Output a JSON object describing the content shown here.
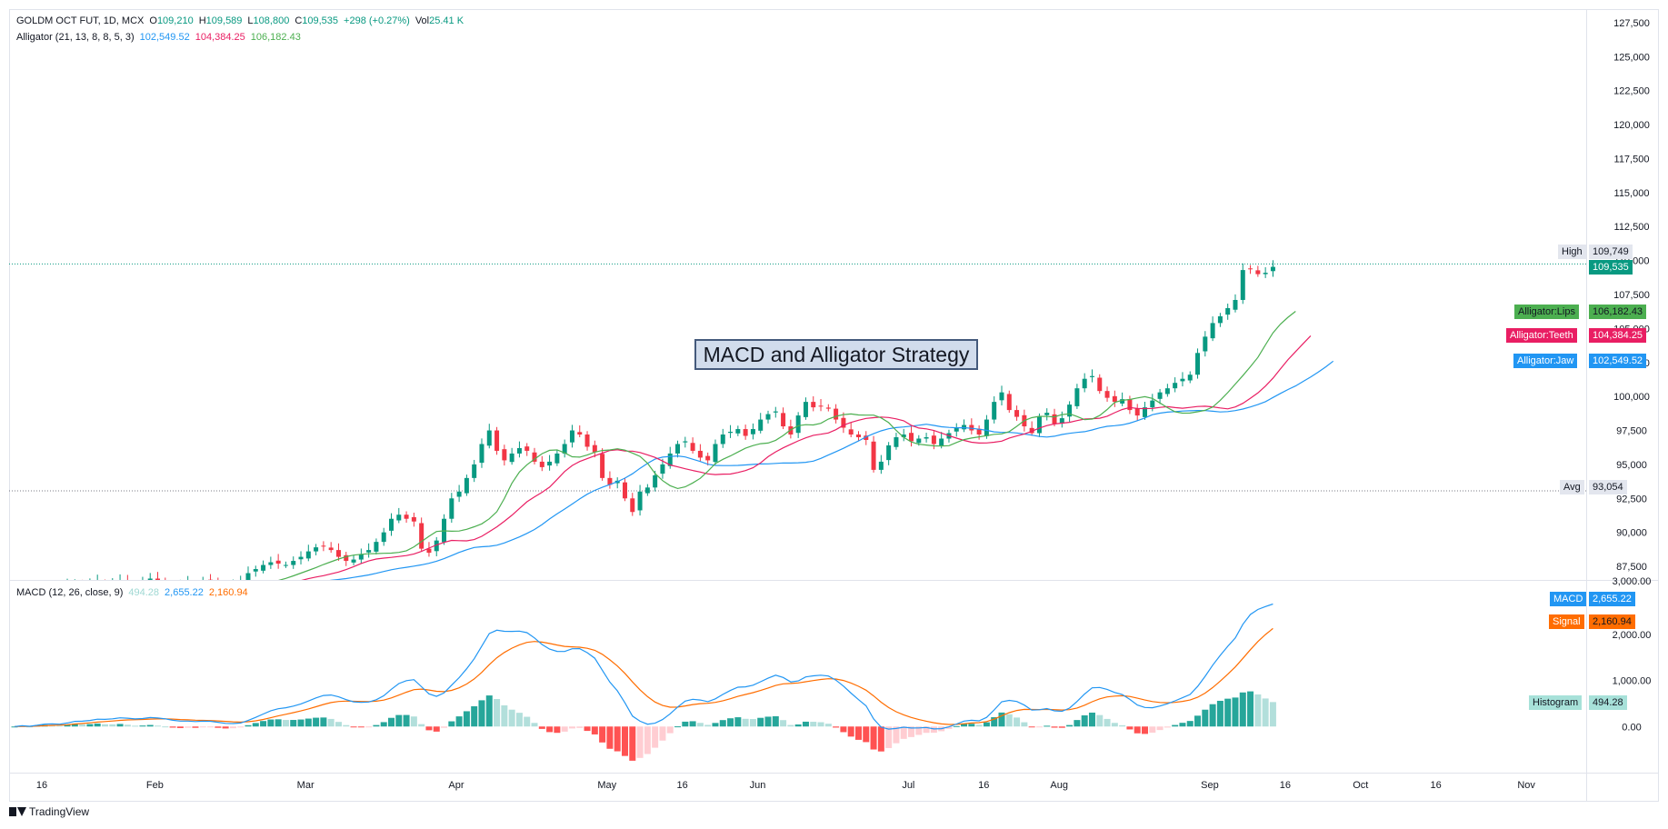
{
  "header": {
    "symbol": "GOLDM OCT FUT, 1D, MCX",
    "o_label": "O",
    "o_value": "109,210",
    "h_label": "H",
    "h_value": "109,589",
    "l_label": "L",
    "l_value": "108,800",
    "c_label": "C",
    "c_value": "109,535",
    "change": "+298 (+0.27%)",
    "vol_label": "Vol",
    "vol_value": "25.41 K",
    "alligator_label": "Alligator (21, 13, 8, 8, 5, 3)",
    "alligator_jaw": "102,549.52",
    "alligator_teeth": "104,384.25",
    "alligator_lips": "106,182.43",
    "macd_label": "MACD (12, 26, close, 9)",
    "macd_hist": "494.28",
    "macd_macd": "2,655.22",
    "macd_signal": "2,160.94"
  },
  "annotation": "MACD and Alligator Strategy",
  "price_labels": {
    "high_label": "High",
    "high_value": "109,749",
    "last_value": "109,535",
    "lips_label": "Alligator:Lips",
    "lips_value": "106,182.43",
    "teeth_label": "Alligator:Teeth",
    "teeth_value": "104,384.25",
    "jaw_label": "Alligator:Jaw",
    "jaw_value": "102,549.52",
    "avg_label": "Avg",
    "avg_value": "93,054"
  },
  "macd_labels": {
    "macd_label": "MACD",
    "macd_value": "2,655.22",
    "signal_label": "Signal",
    "signal_value": "2,160.94",
    "hist_label": "Histogram",
    "hist_value": "494.28"
  },
  "brand": "TradingView",
  "colors": {
    "up": "#089981",
    "down": "#f23645",
    "jaw": "#2196f3",
    "teeth": "#e91e63",
    "lips": "#4caf50",
    "macd": "#2196f3",
    "signal": "#ff6d00",
    "hist_up_strong": "#26a69a",
    "hist_up_weak": "#b2dfdb",
    "hist_down_strong": "#ff5252",
    "hist_down_weak": "#ffcdd2"
  },
  "chart_data": [
    {
      "type": "candlestick",
      "title": "GOLDM OCT FUT, 1D, MCX",
      "ylim": [
        86500,
        128500
      ],
      "y_ticks": [
        87500,
        90000,
        92500,
        95000,
        97500,
        100000,
        102500,
        105000,
        107500,
        110000,
        112500,
        115000,
        117500,
        120000,
        122500,
        125000,
        127500
      ],
      "y_tick_labels": [
        "87,500",
        "90,000",
        "92,500",
        "95,000",
        "97,500",
        "100,000",
        "102,500",
        "105,000",
        "107,500",
        "110,000",
        "112,500",
        "115,000",
        "117,500",
        "120,000",
        "122,500",
        "125,000",
        "127,500"
      ],
      "x_ticks": [
        "16",
        "Feb",
        "Mar",
        "Apr",
        "May",
        "16",
        "Jun",
        "Jul",
        "16",
        "Aug",
        "Sep",
        "16",
        "Oct",
        "16",
        "Nov"
      ],
      "x_tick_index": [
        0,
        15,
        35,
        55,
        75,
        85,
        95,
        115,
        125,
        135,
        155,
        165,
        175,
        185,
        197
      ],
      "high_line": 109749,
      "avg_line": 93054,
      "candles_close": [
        85600,
        85800,
        85500,
        85900,
        86000,
        85800,
        85700,
        86100,
        86300,
        86000,
        86200,
        86400,
        86100,
        86300,
        86500,
        86200,
        86100,
        86400,
        86600,
        86300,
        86200,
        86000,
        86100,
        86300,
        86200,
        86400,
        86300,
        86100,
        86000,
        86200,
        86400,
        87000,
        87300,
        87600,
        87800,
        87700,
        87600,
        87900,
        88200,
        88600,
        88900,
        89000,
        88700,
        88200,
        87900,
        88000,
        88400,
        88700,
        89300,
        90000,
        91000,
        91300,
        91000,
        90800,
        88800,
        88500,
        89400,
        91000,
        92500,
        93000,
        94000,
        95000,
        96500,
        97500,
        96000,
        95300,
        95800,
        96200,
        96000,
        95200,
        94800,
        95200,
        95800,
        96500,
        97500,
        97200,
        96300,
        95900,
        94000,
        93500,
        93800,
        92500,
        91500,
        93000,
        93300,
        94200,
        95000,
        95800,
        96500,
        96700,
        96000,
        95500,
        95300,
        96500,
        97200,
        97400,
        97600,
        97100,
        97600,
        98300,
        98700,
        98900,
        97800,
        97200,
        98600,
        99600,
        99200,
        99300,
        99100,
        98300,
        97700,
        97200,
        97000,
        96800,
        94600,
        95200,
        96400,
        97000,
        97200,
        96700,
        96900,
        97000,
        96500,
        96900,
        97300,
        97700,
        97900,
        97500,
        97200,
        98300,
        99600,
        100300,
        99000,
        98500,
        97800,
        97300,
        98500,
        98800,
        98000,
        98400,
        99400,
        100600,
        101300,
        101500,
        100400,
        99900,
        99600,
        99800,
        99000,
        98600,
        99200,
        99700,
        100300,
        100600,
        101000,
        101300,
        101600,
        103200,
        104400,
        105400,
        105900,
        106500,
        107100,
        109300,
        109400,
        109000,
        109100,
        109535
      ],
      "alligator": {
        "jaw_last": 102549.52,
        "teeth_last": 104384.25,
        "lips_last": 106182.43
      }
    },
    {
      "type": "macd",
      "title": "MACD (12, 26, close, 9)",
      "ylim": [
        -1000,
        3000
      ],
      "y_ticks": [
        0,
        1000,
        2000,
        3000
      ],
      "y_tick_labels": [
        "0.00",
        "1,000.00",
        "2,000.00",
        "3,000.00"
      ],
      "series": [
        {
          "name": "MACD",
          "last": 2655.22
        },
        {
          "name": "Signal",
          "last": 2160.94
        },
        {
          "name": "Histogram",
          "last": 494.28
        }
      ]
    }
  ]
}
